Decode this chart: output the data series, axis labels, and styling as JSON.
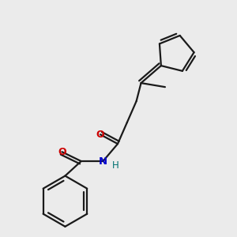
{
  "background_color": "#ebebeb",
  "bond_color": "#1a1a1a",
  "oxygen_color": "#cc0000",
  "nitrogen_color": "#0000cc",
  "hydrogen_color": "#007070",
  "line_width": 1.6,
  "fig_width": 3.0,
  "fig_height": 3.0,
  "dpi": 100,
  "xlim": [
    0,
    10
  ],
  "ylim": [
    0,
    10
  ]
}
